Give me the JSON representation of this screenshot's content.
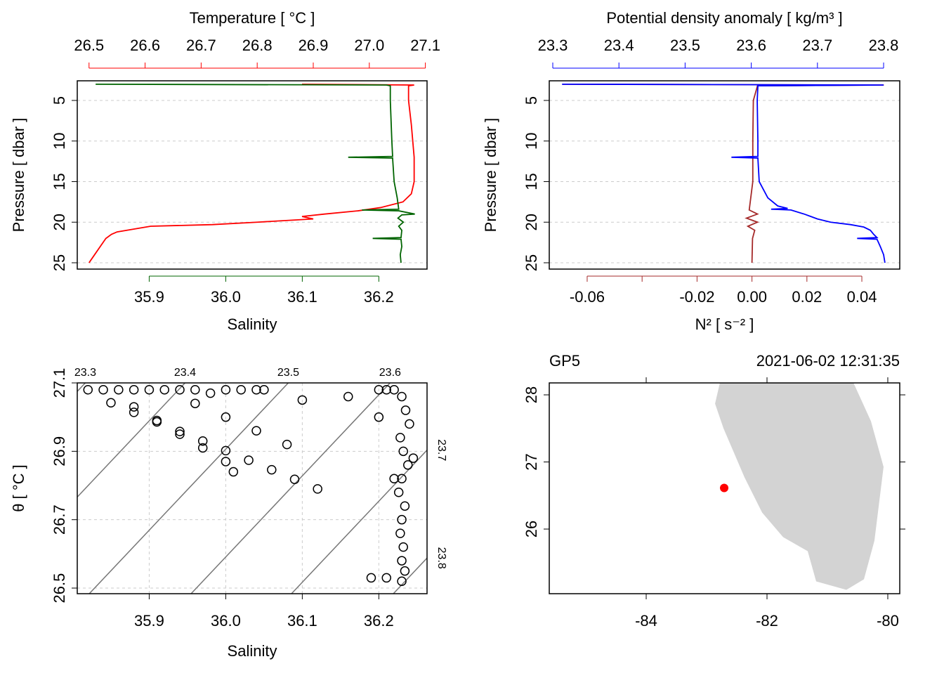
{
  "chart_data": [
    {
      "type": "profile",
      "ylabel": "Pressure [ dbar ]",
      "ylim": [
        2.58,
        25.78
      ],
      "y_reversed": true,
      "yticks": [
        5,
        10,
        15,
        20,
        25
      ],
      "grid": "y",
      "x_axes": [
        {
          "side": "top",
          "label": "Temperature [ °C ]",
          "color": "#ff0000",
          "lim": [
            26.479,
            27.103
          ],
          "ticks": [
            26.5,
            26.6,
            26.7,
            26.8,
            26.9,
            {
              "value": 27,
              "label": "27.0"
            },
            27.1
          ]
        },
        {
          "side": "bottom",
          "label": "Salinity",
          "color": "#006400",
          "lim": [
            35.806,
            36.263
          ],
          "ticks": [
            35.9,
            {
              "value": 36,
              "label": "36.0"
            },
            36.1,
            36.2
          ]
        }
      ],
      "series": [
        {
          "x_axis": 0,
          "color": "#ff0000",
          "pressure": [
            3.0,
            3.1,
            3.2,
            5,
            8,
            12,
            15,
            16.5,
            17.5,
            18.2,
            18.6,
            19.0,
            19.3,
            19.6,
            20.0,
            20.3,
            20.5,
            21.2,
            21.5,
            22.0,
            23.0,
            24.0,
            25.0
          ],
          "values": [
            26.88,
            27.08,
            27.07,
            27.07,
            27.075,
            27.08,
            27.08,
            27.075,
            27.06,
            27.02,
            26.98,
            26.92,
            26.88,
            26.9,
            26.8,
            26.72,
            26.61,
            26.55,
            26.54,
            26.53,
            26.52,
            26.51,
            26.5
          ]
        },
        {
          "x_axis": 1,
          "color": "#006400",
          "pressure": [
            3.0,
            3.1,
            3.2,
            5,
            10,
            11.9,
            12.0,
            12.1,
            15,
            17,
            18.4,
            18.5,
            18.6,
            19.0,
            19.1,
            19.5,
            20,
            20.5,
            21,
            21.9,
            22.0,
            22.1,
            23,
            24,
            25
          ],
          "values": [
            35.83,
            36.21,
            36.215,
            36.215,
            36.217,
            36.218,
            36.16,
            36.218,
            36.22,
            36.224,
            36.226,
            36.178,
            36.226,
            36.247,
            36.23,
            36.225,
            36.232,
            36.226,
            36.23,
            36.229,
            36.192,
            36.229,
            36.23,
            36.228,
            36.229
          ]
        }
      ]
    },
    {
      "type": "profile",
      "ylabel": "Pressure [ dbar ]",
      "ylim": [
        2.58,
        25.78
      ],
      "y_reversed": true,
      "yticks": [
        5,
        10,
        15,
        20,
        25
      ],
      "grid": "y",
      "x_axes": [
        {
          "side": "top",
          "label": "Potential density anomaly [ kg/m³ ]",
          "color": "#0000ff",
          "lim": [
            23.2947,
            23.8244
          ],
          "ticks": [
            23.3,
            23.4,
            23.5,
            23.6,
            23.7,
            23.8
          ]
        },
        {
          "side": "bottom",
          "label": "N² [ s⁻² ]",
          "color": "#a52a2a",
          "lim": [
            -0.0738,
            0.0538
          ],
          "ticks": [
            -0.06,
            -0.02,
            {
              "value": 0,
              "label": "0.00"
            },
            0.02,
            0.04
          ],
          "minor_ticks": [
            -0.04
          ]
        }
      ],
      "series": [
        {
          "x_axis": 1,
          "color": "#a52a2a",
          "pressure": [
            3.0,
            3.1,
            3.2,
            5,
            10,
            15,
            18.5,
            19,
            19.5,
            20,
            20.5,
            21,
            22,
            25
          ],
          "values": [
            -0.069,
            0.048,
            0.002,
            0.0005,
            0.0003,
            0.0003,
            -0.001,
            0.002,
            -0.002,
            0.002,
            -0.0015,
            0.001,
            0.0002,
            0.0
          ]
        },
        {
          "x_axis": 0,
          "color": "#0000ff",
          "pressure": [
            3.0,
            3.1,
            3.2,
            5,
            10,
            11.9,
            12.0,
            12.1,
            15,
            17,
            18.0,
            18.3,
            18.4,
            18.5,
            19.0,
            19.3,
            19.6,
            20.0,
            20.3,
            20.6,
            21,
            21.5,
            21.9,
            22.0,
            22.1,
            23,
            24,
            25
          ],
          "values": [
            23.314,
            23.8,
            23.61,
            23.609,
            23.61,
            23.61,
            23.57,
            23.61,
            23.612,
            23.625,
            23.64,
            23.655,
            23.63,
            23.66,
            23.68,
            23.69,
            23.7,
            23.72,
            23.75,
            23.77,
            23.78,
            23.785,
            23.79,
            23.76,
            23.79,
            23.795,
            23.8,
            23.802
          ]
        }
      ]
    },
    {
      "type": "ts",
      "ylabel": "θ [ °C ]",
      "ylim": [
        26.4836,
        27.1
      ],
      "yticks": [
        26.5,
        26.7,
        26.9,
        27.1
      ],
      "grid": "both",
      "x_axes": [
        {
          "side": "bottom",
          "label": "Salinity",
          "lim": [
            35.806,
            36.263
          ],
          "ticks": [
            35.9,
            {
              "value": 36,
              "label": "36.0"
            },
            36.1,
            36.2
          ]
        }
      ],
      "isopycnals": [
        {
          "sigma": 23.3,
          "S": [
            35.8165,
            35.5565
          ],
          "theta": [
            27.1,
            26.4836
          ]
        },
        {
          "sigma": 23.4,
          "S": [
            35.9468,
            35.6868
          ],
          "theta": [
            27.1,
            26.4836
          ]
        },
        {
          "sigma": 23.5,
          "S": [
            36.0817,
            35.8217
          ],
          "theta": [
            27.1,
            26.4836
          ]
        },
        {
          "sigma": 23.6,
          "S": [
            36.2147,
            35.9547
          ],
          "theta": [
            27.1,
            26.4836
          ]
        },
        {
          "sigma": 23.7,
          "S": [
            36.3459,
            36.0859
          ],
          "theta": [
            27.1,
            26.4836
          ]
        },
        {
          "sigma": 23.8,
          "S": [
            36.479,
            36.219
          ],
          "theta": [
            27.1,
            26.4836
          ]
        }
      ],
      "S": [
        35.82,
        35.84,
        35.86,
        35.88,
        35.9,
        35.92,
        35.94,
        35.96,
        35.98,
        36.0,
        36.02,
        36.04,
        36.05,
        36.2,
        36.21,
        36.22,
        35.85,
        35.88,
        35.91,
        35.94,
        35.97,
        36.0,
        36.03,
        36.06,
        36.09,
        36.12,
        35.88,
        35.91,
        35.94,
        35.97,
        36.0,
        36.01,
        35.96,
        36.0,
        36.04,
        36.08,
        36.23,
        36.235,
        36.24,
        36.228,
        36.232,
        36.238,
        36.23,
        36.226,
        36.234,
        36.23,
        36.228,
        36.232,
        36.23,
        36.234,
        36.23,
        36.1,
        36.16,
        36.2,
        36.22,
        36.19,
        36.21,
        36.245
      ],
      "theta": [
        27.08,
        27.08,
        27.08,
        27.08,
        27.08,
        27.08,
        27.08,
        27.08,
        27.07,
        27.08,
        27.08,
        27.08,
        27.08,
        27.08,
        27.08,
        27.08,
        27.042,
        27.014,
        26.986,
        26.958,
        26.93,
        26.902,
        26.874,
        26.846,
        26.818,
        26.79,
        27.03,
        26.99,
        26.95,
        26.91,
        26.87,
        26.84,
        27.04,
        27.0,
        26.96,
        26.92,
        27.06,
        27.02,
        26.98,
        26.94,
        26.9,
        26.86,
        26.82,
        26.78,
        26.74,
        26.7,
        26.66,
        26.62,
        26.58,
        26.55,
        26.52,
        27.05,
        27.06,
        27.0,
        26.82,
        26.53,
        26.53,
        26.88
      ]
    },
    {
      "type": "map",
      "station": "GP5",
      "time": "2021-06-02 12:31:35",
      "ylim": [
        25.037,
        28.178
      ],
      "yticks": [
        26,
        27,
        28
      ],
      "mirror_ticks": true,
      "x_axes": [
        {
          "side": "bottom",
          "lim": [
            -85.605,
            -79.802
          ],
          "ticks": [
            -84,
            -82,
            -80
          ]
        }
      ],
      "land": {
        "color": "#d3d3d3",
        "lon": [
          -82.779,
          -82.86,
          -82.721,
          -82.372,
          -82.081,
          -81.733,
          -81.326,
          -81.186,
          -80.686,
          -80.395,
          -80.221,
          -80.07,
          -80.279,
          -80.57
        ],
        "lat": [
          28.183,
          27.869,
          27.503,
          26.77,
          26.246,
          25.88,
          25.67,
          25.22,
          25.094,
          25.251,
          25.827,
          26.927,
          27.607,
          28.183
        ]
      },
      "point": {
        "lon": -82.709,
        "lat": 26.613,
        "color": "#ff0000"
      }
    }
  ]
}
